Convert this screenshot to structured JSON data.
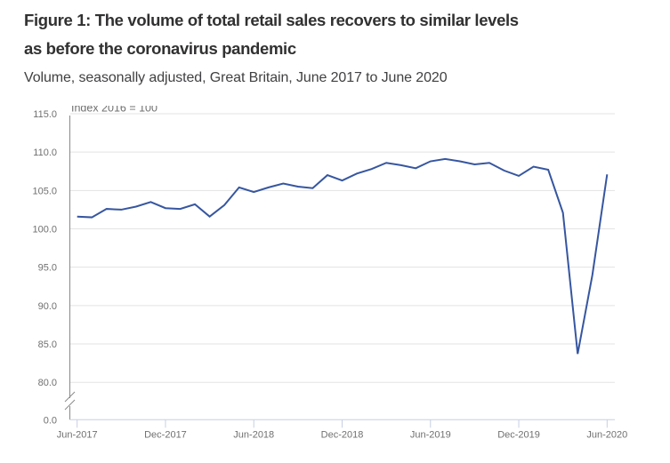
{
  "header": {
    "title_line1": "Figure 1: The volume of total retail sales recovers to similar levels",
    "title_line2": "as before the coronavirus pandemic",
    "subtitle": "Volume, seasonally adjusted, Great Britain, June 2017 to June 2020"
  },
  "chart_data": {
    "type": "line",
    "title": "Figure 1: The volume of total retail sales recovers to similar levels as before the coronavirus pandemic",
    "subtitle": "Volume, seasonally adjusted, Great Britain, June 2017 to June 2020",
    "xlabel": "",
    "ylabel": "Index 2016 = 100",
    "ylim": [
      80,
      115
    ],
    "y_axis_break": true,
    "y_axis_baseline_label": "0.0",
    "yticks": [
      115,
      110,
      105,
      100,
      95,
      90,
      85,
      80
    ],
    "ytick_labels": [
      "115.0",
      "110.0",
      "105.0",
      "100.0",
      "95.0",
      "90.0",
      "85.0",
      "80.0"
    ],
    "xtick_labels": [
      "Jun-2017",
      "Dec-2017",
      "Jun-2018",
      "Dec-2018",
      "Jun-2019",
      "Dec-2019",
      "Jun-2020"
    ],
    "xtick_every_n_months": 6,
    "grid": true,
    "legend": "none",
    "colors": {
      "line": "#3656a0",
      "grid": "#e3e3e3",
      "axis": "#8a8a8a",
      "x_axis": "#c6cfe2"
    },
    "categories": [
      "Jun-2017",
      "Jul-2017",
      "Aug-2017",
      "Sep-2017",
      "Oct-2017",
      "Nov-2017",
      "Dec-2017",
      "Jan-2018",
      "Feb-2018",
      "Mar-2018",
      "Apr-2018",
      "May-2018",
      "Jun-2018",
      "Jul-2018",
      "Aug-2018",
      "Sep-2018",
      "Oct-2018",
      "Nov-2018",
      "Dec-2018",
      "Jan-2019",
      "Feb-2019",
      "Mar-2019",
      "Apr-2019",
      "May-2019",
      "Jun-2019",
      "Jul-2019",
      "Aug-2019",
      "Sep-2019",
      "Oct-2019",
      "Nov-2019",
      "Dec-2019",
      "Jan-2020",
      "Feb-2020",
      "Mar-2020",
      "Apr-2020",
      "May-2020",
      "Jun-2020"
    ],
    "series": [
      {
        "name": "Total retail sales volume index",
        "values": [
          101.6,
          101.5,
          102.6,
          102.5,
          102.9,
          103.5,
          102.7,
          102.6,
          103.2,
          101.6,
          103.1,
          105.4,
          104.8,
          105.4,
          105.9,
          105.5,
          105.3,
          107.0,
          106.3,
          107.2,
          107.8,
          108.6,
          108.3,
          107.9,
          108.8,
          109.1,
          108.8,
          108.4,
          108.6,
          107.6,
          106.9,
          108.1,
          107.7,
          102.1,
          83.7,
          94.0,
          107.1
        ]
      }
    ]
  }
}
